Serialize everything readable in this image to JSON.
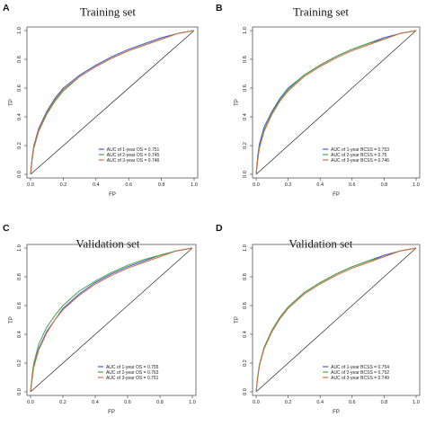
{
  "colors": {
    "series1": "#3a5bd8",
    "series2": "#3fa83f",
    "series3": "#d86a3a",
    "frame": "#555555",
    "diagonal": "#222222"
  },
  "chart_data": [
    {
      "panel": "A",
      "type": "line",
      "title": "Training set",
      "xlabel": "FP",
      "ylabel": "TP",
      "xlim": [
        0,
        1
      ],
      "ylim": [
        0,
        1
      ],
      "ticks": [
        "0.0",
        "0.2",
        "0.4",
        "0.6",
        "0.8",
        "1.0"
      ],
      "legend_position": "bottom-right",
      "reference_line": [
        [
          0,
          0
        ],
        [
          1,
          1
        ]
      ],
      "series": [
        {
          "name": "AUC of 1-year OS = 0.751",
          "x": [
            0,
            0.01,
            0.02,
            0.05,
            0.1,
            0.15,
            0.2,
            0.3,
            0.4,
            0.5,
            0.6,
            0.7,
            0.8,
            0.9,
            1.0
          ],
          "y": [
            0,
            0.12,
            0.2,
            0.32,
            0.44,
            0.53,
            0.6,
            0.69,
            0.76,
            0.82,
            0.87,
            0.91,
            0.95,
            0.98,
            1.0
          ]
        },
        {
          "name": "AUC of 2-year OS = 0.745",
          "x": [
            0,
            0.01,
            0.02,
            0.05,
            0.1,
            0.15,
            0.2,
            0.3,
            0.4,
            0.5,
            0.6,
            0.7,
            0.8,
            0.9,
            1.0
          ],
          "y": [
            0,
            0.1,
            0.18,
            0.3,
            0.42,
            0.51,
            0.58,
            0.68,
            0.75,
            0.81,
            0.86,
            0.9,
            0.94,
            0.98,
            1.0
          ]
        },
        {
          "name": "AUC of 3-year OS = 0.746",
          "x": [
            0,
            0.01,
            0.02,
            0.05,
            0.1,
            0.15,
            0.2,
            0.3,
            0.4,
            0.5,
            0.6,
            0.7,
            0.8,
            0.9,
            1.0
          ],
          "y": [
            0,
            0.11,
            0.19,
            0.31,
            0.43,
            0.52,
            0.59,
            0.68,
            0.75,
            0.81,
            0.86,
            0.9,
            0.94,
            0.98,
            1.0
          ]
        }
      ]
    },
    {
      "panel": "B",
      "type": "line",
      "title": "Training set",
      "xlabel": "FP",
      "ylabel": "TP",
      "xlim": [
        0,
        1
      ],
      "ylim": [
        0,
        1
      ],
      "ticks": [
        "0.0",
        "0.2",
        "0.4",
        "0.6",
        "0.8",
        "1.0"
      ],
      "legend_position": "bottom-right",
      "reference_line": [
        [
          0,
          0
        ],
        [
          1,
          1
        ]
      ],
      "series": [
        {
          "name": "AUC of 1-year BCSS = 0.753",
          "x": [
            0,
            0.01,
            0.02,
            0.05,
            0.1,
            0.15,
            0.2,
            0.3,
            0.4,
            0.5,
            0.6,
            0.7,
            0.8,
            0.9,
            1.0
          ],
          "y": [
            0,
            0.13,
            0.21,
            0.33,
            0.44,
            0.53,
            0.6,
            0.69,
            0.76,
            0.82,
            0.87,
            0.91,
            0.95,
            0.98,
            1.0
          ]
        },
        {
          "name": "AUC of 2-year BCSS = 0.75",
          "x": [
            0,
            0.01,
            0.02,
            0.05,
            0.1,
            0.15,
            0.2,
            0.3,
            0.4,
            0.5,
            0.6,
            0.7,
            0.8,
            0.9,
            1.0
          ],
          "y": [
            0,
            0.11,
            0.19,
            0.31,
            0.43,
            0.52,
            0.59,
            0.69,
            0.76,
            0.82,
            0.87,
            0.91,
            0.94,
            0.98,
            1.0
          ]
        },
        {
          "name": "AUC of 3-year BCSS = 0.746",
          "x": [
            0,
            0.01,
            0.02,
            0.05,
            0.1,
            0.15,
            0.2,
            0.3,
            0.4,
            0.5,
            0.6,
            0.7,
            0.8,
            0.9,
            1.0
          ],
          "y": [
            0,
            0.1,
            0.18,
            0.3,
            0.42,
            0.51,
            0.58,
            0.68,
            0.75,
            0.81,
            0.86,
            0.9,
            0.94,
            0.98,
            1.0
          ]
        }
      ]
    },
    {
      "panel": "C",
      "type": "line",
      "title": "Validation set",
      "xlabel": "FP",
      "ylabel": "TP",
      "xlim": [
        0,
        1
      ],
      "ylim": [
        0,
        1
      ],
      "ticks": [
        "0.0",
        "0.2",
        "0.4",
        "0.6",
        "0.8",
        "1.0"
      ],
      "legend_position": "bottom-right",
      "reference_line": [
        [
          0,
          0
        ],
        [
          1,
          1
        ]
      ],
      "series": [
        {
          "name": "AUC of 1-year OS = 0.755",
          "x": [
            0,
            0.01,
            0.02,
            0.05,
            0.1,
            0.15,
            0.2,
            0.3,
            0.4,
            0.5,
            0.6,
            0.7,
            0.8,
            0.9,
            1.0
          ],
          "y": [
            0,
            0.1,
            0.18,
            0.3,
            0.42,
            0.5,
            0.58,
            0.68,
            0.76,
            0.82,
            0.87,
            0.91,
            0.95,
            0.98,
            1.0
          ]
        },
        {
          "name": "AUC of 2-year OS = 0.763",
          "x": [
            0,
            0.01,
            0.02,
            0.05,
            0.1,
            0.15,
            0.2,
            0.3,
            0.4,
            0.5,
            0.6,
            0.7,
            0.8,
            0.9,
            1.0
          ],
          "y": [
            0,
            0.12,
            0.2,
            0.33,
            0.45,
            0.53,
            0.6,
            0.7,
            0.77,
            0.83,
            0.88,
            0.92,
            0.95,
            0.98,
            1.0
          ]
        },
        {
          "name": "AUC of 3-year OS = 0.751",
          "x": [
            0,
            0.01,
            0.02,
            0.05,
            0.1,
            0.15,
            0.2,
            0.3,
            0.4,
            0.5,
            0.6,
            0.7,
            0.8,
            0.9,
            1.0
          ],
          "y": [
            0,
            0.09,
            0.17,
            0.29,
            0.41,
            0.5,
            0.57,
            0.67,
            0.75,
            0.81,
            0.86,
            0.9,
            0.94,
            0.98,
            1.0
          ]
        }
      ]
    },
    {
      "panel": "D",
      "type": "line",
      "title": "Validation set",
      "xlabel": "FP",
      "ylabel": "TP",
      "xlim": [
        0,
        1
      ],
      "ylim": [
        0,
        1
      ],
      "ticks": [
        "0.0",
        "0.2",
        "0.4",
        "0.6",
        "0.8",
        "1.0"
      ],
      "legend_position": "bottom-right",
      "reference_line": [
        [
          0,
          0
        ],
        [
          1,
          1
        ]
      ],
      "series": [
        {
          "name": "AUC of 1-year BCSS = 0.754",
          "x": [
            0,
            0.01,
            0.02,
            0.05,
            0.1,
            0.15,
            0.2,
            0.3,
            0.4,
            0.5,
            0.6,
            0.7,
            0.8,
            0.9,
            1.0
          ],
          "y": [
            0,
            0.1,
            0.18,
            0.31,
            0.43,
            0.52,
            0.59,
            0.69,
            0.76,
            0.82,
            0.87,
            0.91,
            0.95,
            0.98,
            1.0
          ]
        },
        {
          "name": "AUC of 2-year BCSS = 0.752",
          "x": [
            0,
            0.01,
            0.02,
            0.05,
            0.1,
            0.15,
            0.2,
            0.3,
            0.4,
            0.5,
            0.6,
            0.7,
            0.8,
            0.9,
            1.0
          ],
          "y": [
            0,
            0.11,
            0.19,
            0.31,
            0.43,
            0.52,
            0.59,
            0.69,
            0.76,
            0.82,
            0.87,
            0.91,
            0.94,
            0.98,
            1.0
          ]
        },
        {
          "name": "AUC of 3-year BCSS = 0.749",
          "x": [
            0,
            0.01,
            0.02,
            0.05,
            0.1,
            0.15,
            0.2,
            0.3,
            0.4,
            0.5,
            0.6,
            0.7,
            0.8,
            0.9,
            1.0
          ],
          "y": [
            0,
            0.1,
            0.18,
            0.3,
            0.42,
            0.51,
            0.58,
            0.68,
            0.75,
            0.81,
            0.86,
            0.9,
            0.94,
            0.98,
            1.0
          ]
        }
      ]
    }
  ]
}
